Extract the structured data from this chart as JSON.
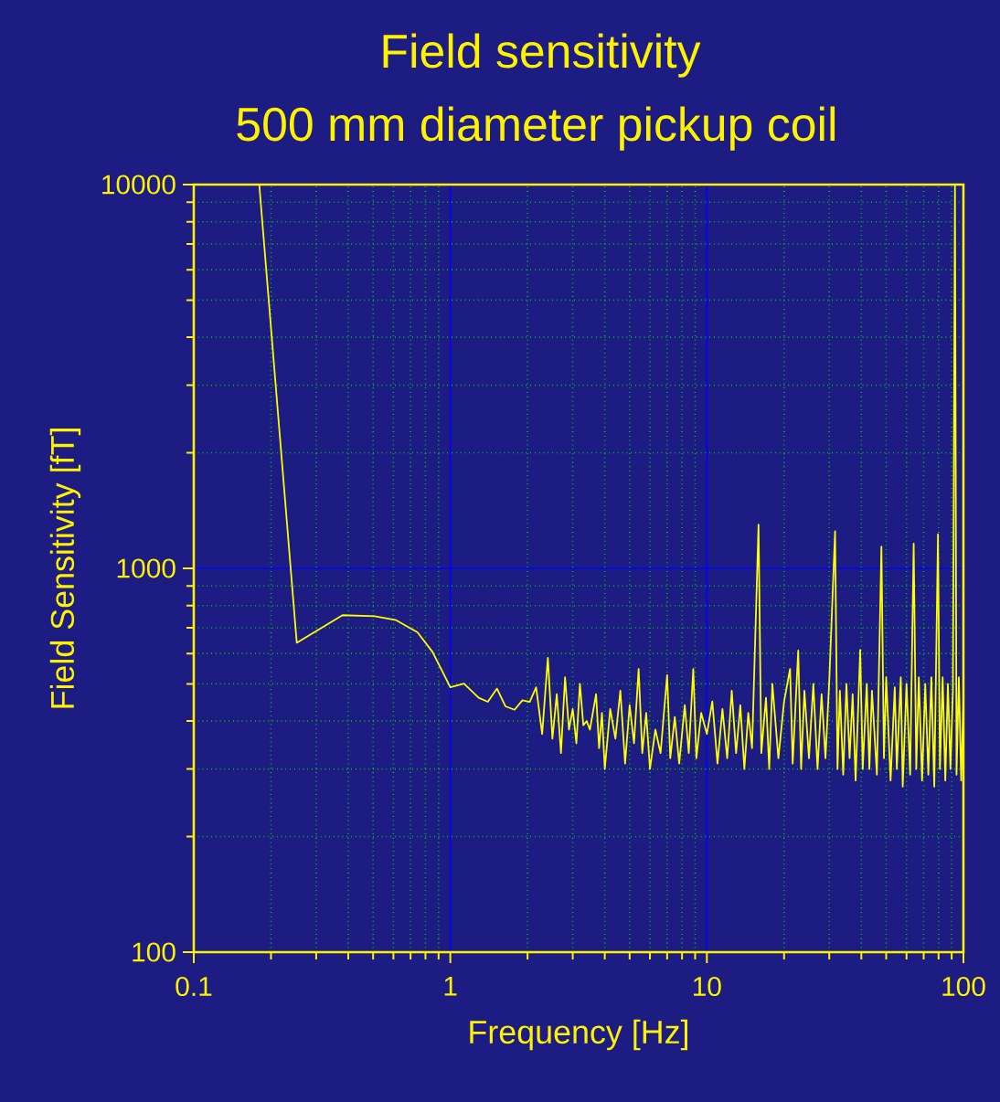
{
  "chart_data": {
    "type": "line",
    "title": "Field sensitivity",
    "subtitle": "500 mm diameter pickup coil",
    "xlabel": "Frequency [Hz]",
    "ylabel": "Field Sensitivity [fT]",
    "log": "xy",
    "grid": true,
    "xlim": [
      0.1,
      100
    ],
    "ylim": [
      100,
      10000
    ],
    "xticks": [
      0.1,
      {
        "value": 0.2,
        "label": null
      },
      {
        "value": 0.3,
        "label": null
      },
      {
        "value": 0.4,
        "label": null
      },
      {
        "value": 0.5,
        "label": null
      },
      {
        "value": 0.6,
        "label": null
      },
      {
        "value": 0.7,
        "label": null
      },
      {
        "value": 0.8,
        "label": null
      },
      {
        "value": 0.9,
        "label": null
      },
      1,
      {
        "value": 2,
        "label": null
      },
      {
        "value": 3,
        "label": null
      },
      {
        "value": 4,
        "label": null
      },
      {
        "value": 5,
        "label": null
      },
      {
        "value": 6,
        "label": null
      },
      {
        "value": 7,
        "label": null
      },
      {
        "value": 8,
        "label": null
      },
      {
        "value": 9,
        "label": null
      },
      10,
      {
        "value": 20,
        "label": null
      },
      {
        "value": 30,
        "label": null
      },
      {
        "value": 40,
        "label": null
      },
      {
        "value": 50,
        "label": null
      },
      {
        "value": 60,
        "label": null
      },
      {
        "value": 70,
        "label": null
      },
      {
        "value": 80,
        "label": null
      },
      {
        "value": 90,
        "label": null
      },
      100
    ],
    "yticks": [
      100,
      {
        "value": 200,
        "label": null
      },
      {
        "value": 300,
        "label": null
      },
      {
        "value": 400,
        "label": null
      },
      {
        "value": 500,
        "label": null
      },
      {
        "value": 600,
        "label": null
      },
      {
        "value": 700,
        "label": null
      },
      {
        "value": 800,
        "label": null
      },
      {
        "value": 900,
        "label": null
      },
      1000,
      {
        "value": 2000,
        "label": null
      },
      {
        "value": 3000,
        "label": null
      },
      {
        "value": 4000,
        "label": null
      },
      {
        "value": 5000,
        "label": null
      },
      {
        "value": 6000,
        "label": null
      },
      {
        "value": 7000,
        "label": null
      },
      {
        "value": 8000,
        "label": null
      },
      {
        "value": 9000,
        "label": null
      },
      10000
    ],
    "series": [
      {
        "color": "#ffff00",
        "x": [
          0.18,
          0.252,
          0.38,
          0.507,
          0.615,
          0.745,
          0.853,
          1.0,
          1.13,
          1.29,
          1.4,
          1.52,
          1.64,
          1.78,
          1.91,
          2.04,
          2.16,
          2.28,
          2.4,
          2.5,
          2.6,
          2.7,
          2.8,
          2.9,
          3.0,
          3.1,
          3.2,
          3.3,
          3.4,
          3.5,
          3.7,
          3.8,
          3.9,
          4.0,
          4.2,
          4.4,
          4.6,
          4.8,
          5.0,
          5.2,
          5.42,
          5.6,
          5.8,
          6.0,
          6.3,
          6.6,
          7.0,
          7.2,
          7.5,
          7.8,
          8.2,
          8.5,
          8.85,
          9.1,
          9.5,
          10,
          10.5,
          11,
          11.5,
          12,
          12.5,
          13,
          13.5,
          14,
          14.5,
          15,
          15.9,
          16.3,
          17,
          17.5,
          18,
          19,
          20,
          21.1,
          21.6,
          22.7,
          23.3,
          24,
          25,
          26,
          27,
          28,
          29,
          30,
          31.6,
          32.3,
          33,
          34,
          35,
          36,
          37,
          38,
          39.6,
          40.5,
          42,
          43,
          44,
          46,
          47.9,
          49,
          50,
          52,
          54,
          55,
          57,
          58,
          60,
          62,
          64,
          65.5,
          67,
          69,
          71,
          73,
          75,
          77,
          79.6,
          81,
          83,
          85,
          87,
          89,
          91,
          92.7,
          94,
          96,
          98,
          100
        ],
        "values": [
          10000,
          640,
          755,
          750,
          733,
          681,
          605,
          490,
          501,
          460,
          449,
          486,
          437,
          428,
          453,
          449,
          490,
          370,
          585,
          360,
          470,
          330,
          520,
          380,
          430,
          350,
          500,
          390,
          400,
          380,
          470,
          340,
          420,
          300,
          430,
          360,
          480,
          310,
          440,
          350,
          547,
          330,
          420,
          300,
          380,
          330,
          527,
          320,
          410,
          310,
          440,
          330,
          547,
          320,
          420,
          370,
          450,
          310,
          430,
          320,
          480,
          330,
          440,
          300,
          420,
          340,
          1300,
          330,
          460,
          300,
          500,
          320,
          450,
          547,
          310,
          611,
          300,
          480,
          320,
          500,
          300,
          470,
          320,
          510,
          1250,
          300,
          480,
          290,
          500,
          320,
          470,
          280,
          613,
          300,
          500,
          300,
          480,
          290,
          1140,
          320,
          520,
          280,
          490,
          300,
          520,
          270,
          500,
          290,
          1160,
          300,
          520,
          280,
          500,
          290,
          520,
          270,
          1227,
          300,
          520,
          280,
          500,
          300,
          480,
          10000,
          290,
          520,
          280,
          450
        ]
      }
    ]
  }
}
